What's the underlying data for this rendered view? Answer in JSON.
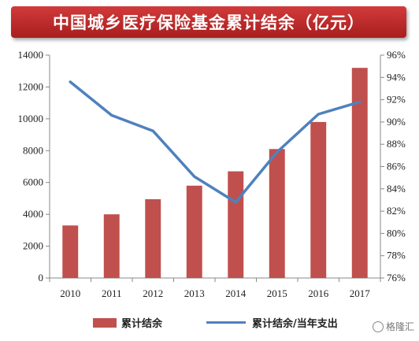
{
  "chart_data": {
    "type": "bar",
    "title": "中国城乡医疗保险基金累计结余（亿元）",
    "categories": [
      "2010",
      "2011",
      "2012",
      "2013",
      "2014",
      "2015",
      "2016",
      "2017"
    ],
    "series": [
      {
        "name": "累计结余",
        "type": "bar",
        "axis": "left",
        "color": "#c0504d",
        "values": [
          3300,
          4000,
          4950,
          5800,
          6700,
          8100,
          9800,
          13200
        ]
      },
      {
        "name": "累计结余/当年支出",
        "type": "line",
        "axis": "right",
        "color": "#4f81bd",
        "values": [
          93.6,
          90.6,
          89.2,
          85.1,
          82.8,
          87.3,
          90.7,
          91.8
        ]
      }
    ],
    "y_left": {
      "min": 0,
      "max": 14000,
      "step": 2000,
      "tick_labels": [
        "0",
        "2000",
        "4000",
        "6000",
        "8000",
        "10000",
        "12000",
        "14000"
      ]
    },
    "y_right": {
      "min": 76,
      "max": 96,
      "step": 2,
      "tick_labels": [
        "76%",
        "78%",
        "80%",
        "82%",
        "84%",
        "86%",
        "88%",
        "90%",
        "92%",
        "94%",
        "96%"
      ]
    },
    "legend": "bottom"
  },
  "watermark": {
    "text": "格隆汇"
  }
}
